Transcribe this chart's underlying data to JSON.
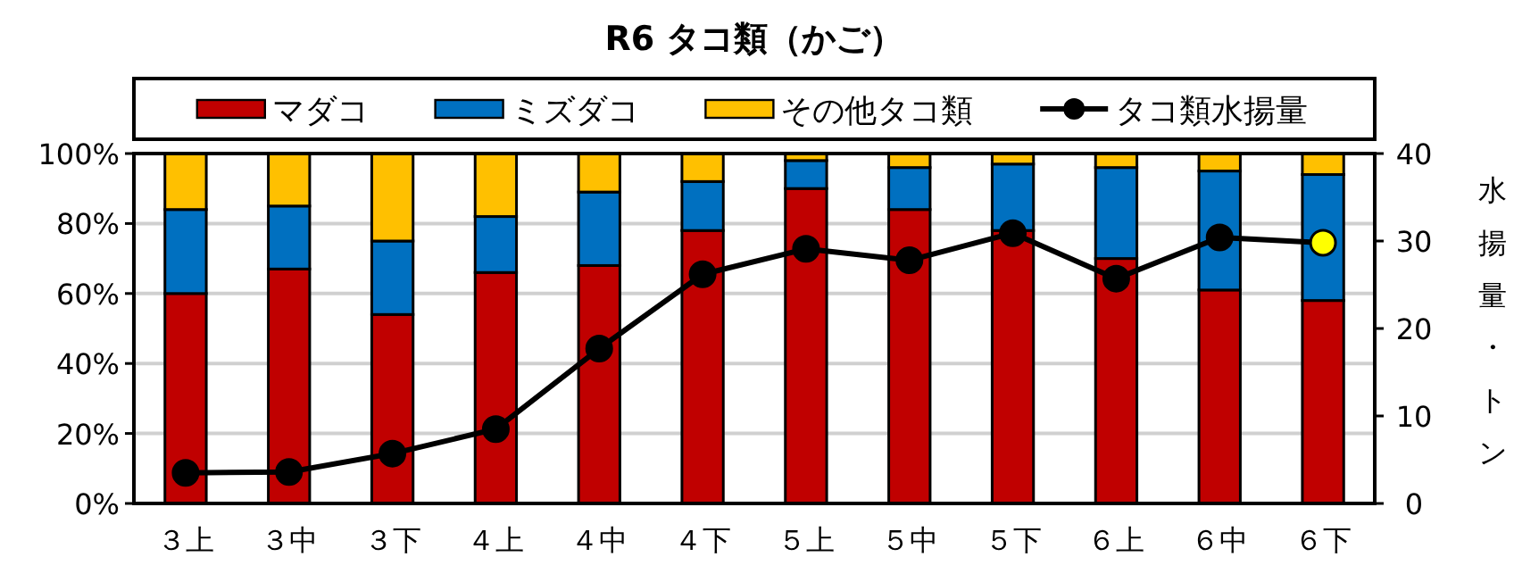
{
  "chart_data": {
    "type": "bar",
    "stacked": true,
    "title": "R6 タコ類（かご）",
    "y2label": "水揚量・トン",
    "categories": [
      "３上",
      "３中",
      "３下",
      "４上",
      "４中",
      "４下",
      "５上",
      "５中",
      "５下",
      "６上",
      "６中",
      "６下"
    ],
    "series": [
      {
        "name": "マダコ",
        "color": "#c00000",
        "values": [
          60,
          67,
          54,
          66,
          68,
          78,
          90,
          84,
          78,
          70,
          61,
          58
        ]
      },
      {
        "name": "ミズダコ",
        "color": "#0070c0",
        "values": [
          24,
          18,
          21,
          16,
          21,
          14,
          8,
          12,
          19,
          26,
          34,
          36
        ]
      },
      {
        "name": "その他タコ類",
        "color": "#ffc000",
        "values": [
          16,
          15,
          25,
          18,
          11,
          8,
          2,
          4,
          3,
          4,
          5,
          6
        ]
      },
      {
        "name": "タコ類水揚量",
        "type": "line",
        "axis": "y2",
        "color": "#000000",
        "marker": "circle",
        "colors": [
          "#000000",
          "#000000",
          "#000000",
          "#000000",
          "#000000",
          "#000000",
          "#000000",
          "#000000",
          "#000000",
          "#000000",
          "#000000",
          "#ffff00"
        ],
        "values": [
          3.5,
          3.6,
          5.7,
          8.5,
          17.7,
          26.2,
          29.1,
          27.8,
          30.9,
          25.7,
          30.4,
          29.8
        ]
      }
    ],
    "ylim": [
      0,
      100
    ],
    "yticks": [
      {
        "value": 0,
        "label": "0%"
      },
      {
        "value": 20,
        "label": "20%"
      },
      {
        "value": 40,
        "label": "40%"
      },
      {
        "value": 60,
        "label": "60%"
      },
      {
        "value": 80,
        "label": "80%"
      },
      {
        "value": 100,
        "label": "100%"
      }
    ],
    "y2lim": [
      0,
      40
    ],
    "y2ticks": [
      0,
      10,
      20,
      30,
      40
    ],
    "grid": "y",
    "legend": "top"
  }
}
